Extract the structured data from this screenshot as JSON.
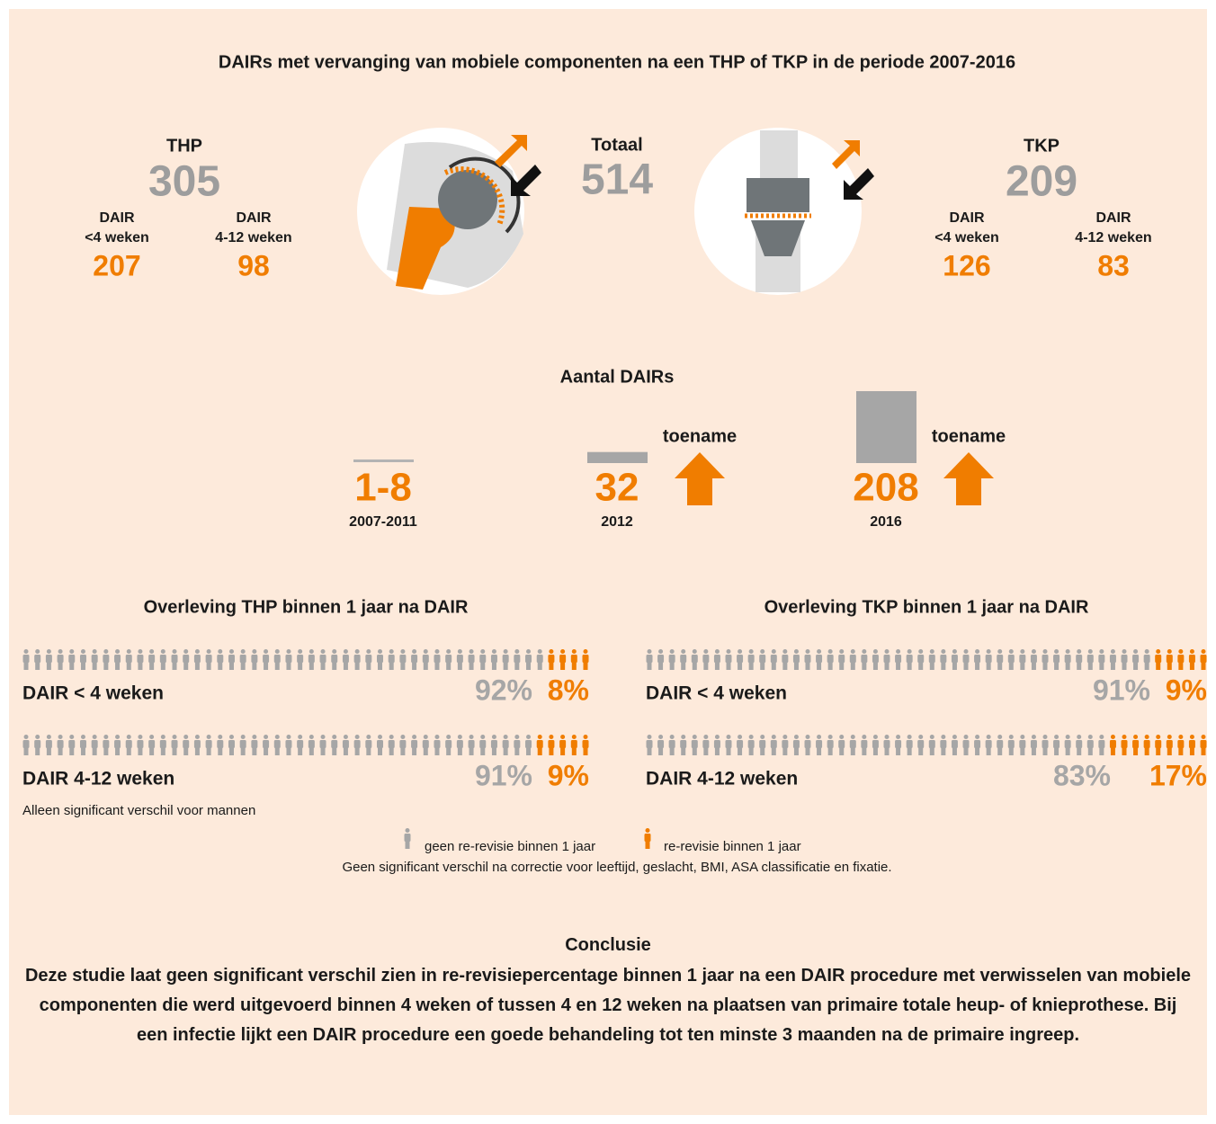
{
  "title": "DAIRs met vervanging van mobiele componenten na een THP of TKP in de periode 2007-2016",
  "summary": {
    "thp": {
      "label": "THP",
      "total": 305,
      "groups": [
        {
          "line1": "DAIR",
          "line2": "<4 weken",
          "value": 207
        },
        {
          "line1": "DAIR",
          "line2": "4-12 weken",
          "value": 98
        }
      ]
    },
    "total": {
      "label": "Totaal",
      "value": 514
    },
    "tkp": {
      "label": "TKP",
      "total": 209,
      "groups": [
        {
          "line1": "DAIR",
          "line2": "<4 weken",
          "value": 126
        },
        {
          "line1": "DAIR",
          "line2": "4-12 weken",
          "value": 83
        }
      ]
    }
  },
  "counts": {
    "title": "Aantal DAIRs",
    "items": [
      {
        "value": "1-8",
        "period": "2007-2011"
      },
      {
        "value": 32,
        "period": "2012",
        "trend": "toename"
      },
      {
        "value": 208,
        "period": "2016",
        "trend": "toename"
      }
    ]
  },
  "survival": [
    {
      "title": "Overleving THP binnen 1 jaar na DAIR",
      "rows": [
        {
          "label": "DAIR < 4 weken",
          "no_rerevision": {
            "value": 92,
            "label": "92%"
          },
          "rerevision": {
            "value": 8,
            "label": "8%"
          }
        },
        {
          "label": "DAIR 4-12 weken",
          "no_rerevision": {
            "value": 91,
            "label": "91%"
          },
          "rerevision": {
            "value": 9,
            "label": "9%"
          }
        }
      ],
      "note": "Alleen significant verschil voor mannen"
    },
    {
      "title": "Overleving TKP binnen 1 jaar na DAIR",
      "rows": [
        {
          "label": "DAIR < 4 weken",
          "no_rerevision": {
            "value": 91,
            "label": "91%"
          },
          "rerevision": {
            "value": 9,
            "label": "9%"
          }
        },
        {
          "label": "DAIR 4-12 weken",
          "no_rerevision": {
            "value": 83,
            "label": "83%"
          },
          "rerevision": {
            "value": 17,
            "label": "17%"
          }
        }
      ]
    }
  ],
  "legend": {
    "no_rerevision": "geen re-revisie binnen 1 jaar",
    "rerevision": "re-revisie binnen 1 jaar",
    "note": "Geen significant verschil na correctie voor leeftijd, geslacht, BMI, ASA classificatie en fixatie."
  },
  "conclusion": {
    "title": "Conclusie",
    "text": "Deze studie laat geen significant verschil zien in re-revisiepercentage binnen 1 jaar na een DAIR procedure met verwisselen van mobiele componenten die werd uitgevoerd binnen 4 weken of tussen 4 en 12 weken na plaatsen van primaire totale heup- of knieprothese. Bij een infectie lijkt een DAIR procedure een goede behandeling tot ten minste 3 maanden na de primaire ingreep."
  }
}
